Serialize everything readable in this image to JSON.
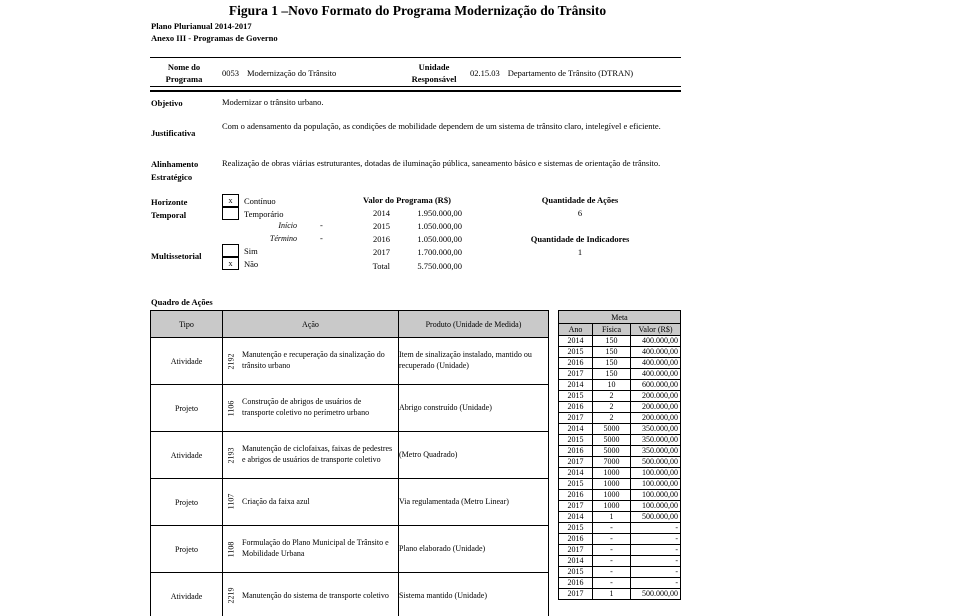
{
  "title": "Figura 1 –Novo Formato do Programa Modernização do Trânsito",
  "subtitles": {
    "line1": "Plano Plurianual 2014-2017",
    "line2": "Anexo III - Programas de Governo"
  },
  "program_header": {
    "name_label": "Nome do Programa",
    "name_code": "0053",
    "name_text": "Modernização do Trânsito",
    "unit_label": "Unidade Responsável",
    "unit_code": "02.15.03",
    "unit_text": "Departamento de Trânsito (DTRAN)"
  },
  "fields": {
    "objetivo_label": "Objetivo",
    "objetivo_value": "Modernizar o trânsito urbano.",
    "justificativa_label": "Justificativa",
    "justificativa_value": "Com o adensamento da população, as condições de mobilidade dependem de um sistema de trânsito claro, intelegível e eficiente.",
    "alinhamento_label": "Alinhamento Estratégico",
    "alinhamento_value": "Realização de obras viárias estruturantes, dotadas de iluminação pública, saneamento básico e sistemas de orientação de trânsito."
  },
  "horizonte": {
    "label": "Horizonte Temporal",
    "continuo_label": "Contínuo",
    "continuo_mark": "x",
    "temporario_label": "Temporário",
    "temporario_mark": "",
    "inicio_label": "Início",
    "inicio_dash": "-",
    "termino_label": "Término",
    "termino_dash": "-"
  },
  "multissetorial": {
    "label": "Multissetorial",
    "sim_label": "Sim",
    "sim_mark": "",
    "nao_label": "Não",
    "nao_mark": "x"
  },
  "valor_programa": {
    "label": "Valor do Programa (R$)",
    "rows": [
      {
        "year": "2014",
        "value": "1.950.000,00"
      },
      {
        "year": "2015",
        "value": "1.050.000,00"
      },
      {
        "year": "2016",
        "value": "1.050.000,00"
      },
      {
        "year": "2017",
        "value": "1.700.000,00"
      },
      {
        "year": "Total",
        "value": "5.750.000,00"
      }
    ]
  },
  "quantidades": {
    "acoes_label": "Quantidade de Ações",
    "acoes_value": "6",
    "indicadores_label": "Quantidade de Indicadores",
    "indicadores_value": "1"
  },
  "quadro": {
    "title": "Quadro de Ações",
    "headers": {
      "tipo": "Tipo",
      "acao": "Ação",
      "produto": "Produto (Unidade de Medida)",
      "meta": "Meta",
      "ano": "Ano",
      "fisica": "Física",
      "valor": "Valor (R$)"
    },
    "rows": [
      {
        "tipo": "Atividade",
        "codigo": "2192",
        "acao": "Manutenção e recuperação da sinalização do trânsito urbano",
        "produto": "Item de sinalização instalado, mantido ou recuperado (Unidade)",
        "metas": [
          [
            "2014",
            "150",
            "400.000,00"
          ],
          [
            "2015",
            "150",
            "400.000,00"
          ],
          [
            "2016",
            "150",
            "400.000,00"
          ],
          [
            "2017",
            "150",
            "400.000,00"
          ]
        ]
      },
      {
        "tipo": "Projeto",
        "codigo": "1106",
        "acao": "Construção de abrigos de usuários de transporte coletivo no perímetro urbano",
        "produto": "Abrigo construído (Unidade)",
        "metas": [
          [
            "2014",
            "10",
            "600.000,00"
          ],
          [
            "2015",
            "2",
            "200.000,00"
          ],
          [
            "2016",
            "2",
            "200.000,00"
          ],
          [
            "2017",
            "2",
            "200.000,00"
          ]
        ]
      },
      {
        "tipo": "Atividade",
        "codigo": "2193",
        "acao": "Manutenção de ciclofaixas, faixas de pedestres e abrigos de usuários de transporte coletivo",
        "produto": "(Metro Quadrado)",
        "metas": [
          [
            "2014",
            "5000",
            "350.000,00"
          ],
          [
            "2015",
            "5000",
            "350.000,00"
          ],
          [
            "2016",
            "5000",
            "350.000,00"
          ],
          [
            "2017",
            "7000",
            "500.000,00"
          ]
        ]
      },
      {
        "tipo": "Projeto",
        "codigo": "1107",
        "acao": "Criação da faixa azul",
        "produto": "Via regulamentada (Metro Linear)",
        "metas": [
          [
            "2014",
            "1000",
            "100.000,00"
          ],
          [
            "2015",
            "1000",
            "100.000,00"
          ],
          [
            "2016",
            "1000",
            "100.000,00"
          ],
          [
            "2017",
            "1000",
            "100.000,00"
          ]
        ]
      },
      {
        "tipo": "Projeto",
        "codigo": "1108",
        "acao": "Formulação do Plano Municipal de Trânsito e Mobilidade Urbana",
        "produto": "Plano elaborado (Unidade)",
        "metas": [
          [
            "2014",
            "1",
            "500.000,00"
          ],
          [
            "2015",
            "-",
            "-"
          ],
          [
            "2016",
            "-",
            "-"
          ],
          [
            "2017",
            "-",
            "-"
          ]
        ]
      },
      {
        "tipo": "Atividade",
        "codigo": "2219",
        "acao": "Manutenção do sistema de transporte coletivo",
        "produto": "Sistema mantido (Unidade)",
        "metas": [
          [
            "2014",
            "-",
            "-"
          ],
          [
            "2015",
            "-",
            "-"
          ],
          [
            "2016",
            "-",
            "-"
          ],
          [
            "2017",
            "1",
            "500.000,00"
          ]
        ]
      }
    ]
  }
}
